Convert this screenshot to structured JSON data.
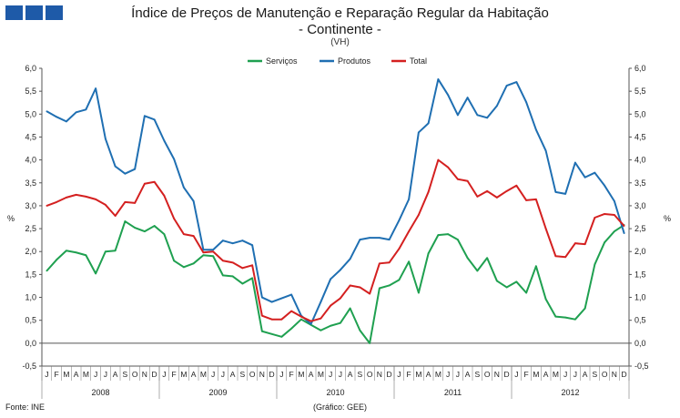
{
  "chart_data": {
    "type": "line",
    "title": "Índice de Preços de Manutenção e Reparação Regular da Habitação",
    "subtitle": "- Continente -",
    "unit_note": "(VH)",
    "ylabel": "%",
    "ylabel_right": "%",
    "ylim": [
      -0.5,
      6.0
    ],
    "yticks": [
      "-0,5",
      "0,0",
      "0,5",
      "1,0",
      "1,5",
      "2,0",
      "2,5",
      "3,0",
      "3,5",
      "4,0",
      "4,5",
      "5,0",
      "5,5",
      "6,0"
    ],
    "month_labels": [
      "J",
      "F",
      "M",
      "A",
      "M",
      "J",
      "J",
      "A",
      "S",
      "O",
      "N",
      "D"
    ],
    "years": [
      "2008",
      "2009",
      "2010",
      "2011",
      "2012"
    ],
    "grid": false,
    "legend_position": "top",
    "series": [
      {
        "name": "Serviços",
        "color": "#1fa050",
        "values": [
          1.58,
          1.82,
          2.02,
          1.98,
          1.92,
          1.52,
          2.0,
          2.02,
          2.66,
          2.52,
          2.44,
          2.56,
          2.38,
          1.8,
          1.66,
          1.74,
          1.92,
          1.9,
          1.48,
          1.46,
          1.3,
          1.42,
          0.26,
          0.2,
          0.14,
          0.32,
          0.52,
          0.4,
          0.28,
          0.38,
          0.44,
          0.76,
          0.28,
          0.0,
          1.2,
          1.26,
          1.38,
          1.78,
          1.1,
          1.96,
          2.36,
          2.38,
          2.26,
          1.86,
          1.58,
          1.86,
          1.36,
          1.22,
          1.34,
          1.1,
          1.68,
          0.96,
          0.58,
          0.56,
          0.52,
          0.76,
          1.72,
          2.2,
          2.44,
          2.58
        ]
      },
      {
        "name": "Produtos",
        "color": "#1f6fb2",
        "values": [
          5.06,
          4.94,
          4.84,
          5.04,
          5.1,
          5.56,
          4.46,
          3.86,
          3.7,
          3.8,
          4.96,
          4.88,
          4.42,
          4.02,
          3.4,
          3.1,
          2.04,
          2.04,
          2.24,
          2.18,
          2.24,
          2.14,
          1.0,
          0.9,
          0.98,
          1.06,
          0.6,
          0.42,
          0.9,
          1.4,
          1.6,
          1.84,
          2.26,
          2.3,
          2.3,
          2.26,
          2.68,
          3.14,
          4.6,
          4.8,
          5.76,
          5.42,
          4.98,
          5.36,
          4.98,
          4.92,
          5.18,
          5.62,
          5.7,
          5.26,
          4.66,
          4.2,
          3.3,
          3.26,
          3.94,
          3.62,
          3.72,
          3.44,
          3.1,
          2.4
        ]
      },
      {
        "name": "Total",
        "color": "#d42020",
        "values": [
          3.0,
          3.08,
          3.18,
          3.24,
          3.2,
          3.14,
          3.02,
          2.78,
          3.08,
          3.06,
          3.48,
          3.52,
          3.22,
          2.72,
          2.38,
          2.34,
          1.98,
          2.0,
          1.8,
          1.76,
          1.64,
          1.7,
          0.6,
          0.52,
          0.52,
          0.7,
          0.58,
          0.48,
          0.54,
          0.82,
          0.98,
          1.26,
          1.22,
          1.08,
          1.74,
          1.76,
          2.06,
          2.44,
          2.8,
          3.3,
          4.0,
          3.84,
          3.58,
          3.54,
          3.2,
          3.32,
          3.18,
          3.32,
          3.44,
          3.12,
          3.14,
          2.5,
          1.9,
          1.88,
          2.18,
          2.16,
          2.74,
          2.82,
          2.8,
          2.56
        ]
      }
    ]
  },
  "footer": {
    "source": "Fonte: INE",
    "credit": "(Gráfico: GEE)"
  }
}
